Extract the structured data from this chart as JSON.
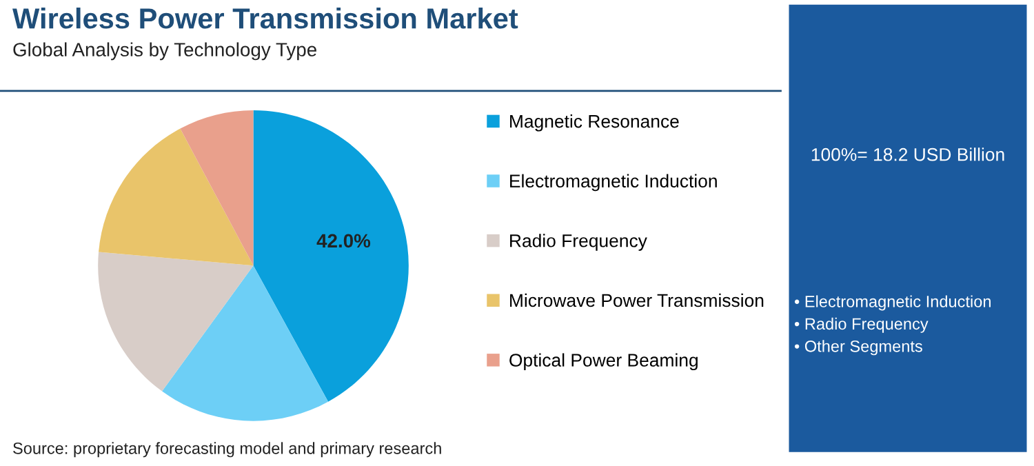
{
  "chart_data": {
    "type": "pie",
    "title": "Wireless Power Transmission Market",
    "subtitle": "Global Analysis by Technology Type",
    "categories": [
      "Magnetic Resonance",
      "Electromagnetic Induction",
      "Radio Frequency",
      "Microwave Power Transmission",
      "Optical Power Beaming"
    ],
    "values": [
      42.0,
      18.0,
      16.4,
      15.8,
      7.8
    ],
    "colors": [
      "#0aa0dc",
      "#6dcff6",
      "#d8cdc8",
      "#e9c46a",
      "#e9a08c"
    ],
    "value_labels": [
      "42.0%",
      null,
      null,
      null,
      null
    ],
    "legend": "right",
    "annotations": [
      "100%= 18.2 USD Billion",
      "• Electromagnetic Induction",
      "• Radio Frequency",
      "• Other Segments",
      "Source: proprietary forecasting model and primary research"
    ]
  }
}
